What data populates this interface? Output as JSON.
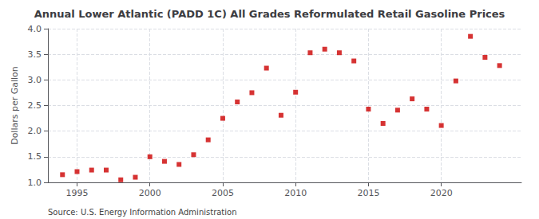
{
  "chart_data": {
    "type": "scatter",
    "title": "Annual Lower Atlantic (PADD 1C) All Grades Reformulated Retail Gasoline Prices",
    "ylabel": "Dollars per Gallon",
    "annotation": "Source: U.S. Energy Information Administration",
    "x": [
      1994,
      1995,
      1996,
      1997,
      1998,
      1999,
      2000,
      2001,
      2002,
      2003,
      2004,
      2005,
      2006,
      2007,
      2008,
      2009,
      2010,
      2011,
      2012,
      2013,
      2014,
      2015,
      2016,
      2017,
      2018,
      2019,
      2020,
      2021,
      2022,
      2023,
      2024
    ],
    "values": [
      1.15,
      1.21,
      1.24,
      1.24,
      1.05,
      1.1,
      1.5,
      1.41,
      1.35,
      1.54,
      1.83,
      2.25,
      2.57,
      2.75,
      3.23,
      2.31,
      2.76,
      3.53,
      3.6,
      3.53,
      3.37,
      2.43,
      2.15,
      2.41,
      2.63,
      2.43,
      2.11,
      2.98,
      3.85,
      3.44,
      3.28
    ],
    "color": "#cc0000",
    "marker": "square",
    "xlim": [
      1993.0,
      2025.5
    ],
    "ylim": [
      1.0,
      4.0
    ],
    "xticks": [
      1995,
      2000,
      2005,
      2010,
      2015,
      2020
    ],
    "yticks": [
      {
        "value": 1.0,
        "label": "1.0"
      },
      1.5,
      {
        "value": 2.0,
        "label": "2.0"
      },
      2.5,
      {
        "value": 3.0,
        "label": "3.0"
      },
      3.5,
      {
        "value": 4.0,
        "label": "4.0"
      }
    ],
    "grid": true
  }
}
